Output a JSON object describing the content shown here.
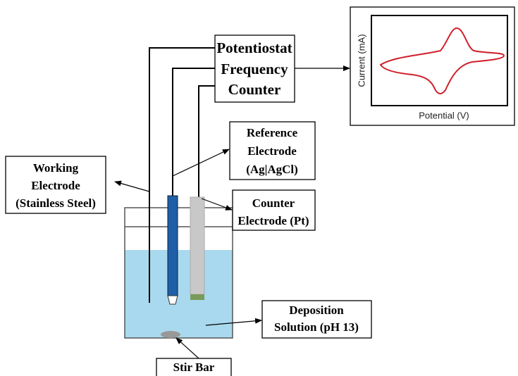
{
  "nodes": [
    {
      "lines": [
        "Potentiostat",
        "Frequency",
        "Counter"
      ]
    },
    {
      "lines": [
        "Reference",
        "Electrode",
        "(Ag|AgCl)"
      ]
    },
    {
      "lines": [
        "Working",
        "Electrode",
        "(Stainless Steel)"
      ]
    },
    {
      "lines": [
        "Counter",
        "Electrode (Pt)"
      ]
    },
    {
      "lines": [
        "Deposition",
        "Solution (pH 13)"
      ]
    },
    {
      "lines": [
        "Stir Bar"
      ]
    }
  ],
  "plot": {
    "y_label": "Current (mA)",
    "x_label": "Potential (V)"
  }
}
